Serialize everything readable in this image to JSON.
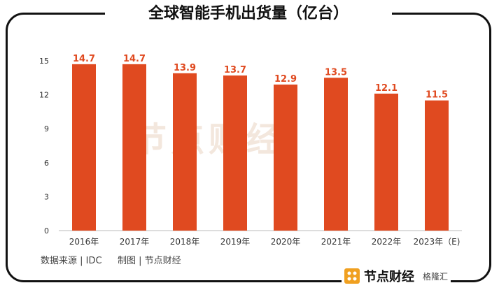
{
  "title": "全球智能手机出货量（亿台）",
  "source": "数据来源 | IDC",
  "credit": "制图 | 节点财经",
  "brand": "节点财经",
  "watermark": "节点财经",
  "badge": "格隆汇",
  "colors": {
    "bar": "#e04a20",
    "label": "#e04a20",
    "axis": "#333333"
  },
  "chart_data": {
    "type": "bar",
    "categories": [
      "2016年",
      "2017年",
      "2018年",
      "2019年",
      "2020年",
      "2021年",
      "2022年",
      "2023年（E)"
    ],
    "values": [
      14.7,
      14.7,
      13.9,
      13.7,
      12.9,
      13.5,
      12.1,
      11.5
    ],
    "data_labels": [
      "14.7",
      "14.7",
      "13.9",
      "13.7",
      "12.9",
      "13.5",
      "12.1",
      "11.5"
    ],
    "title": "全球智能手机出货量（亿台）",
    "xlabel": "",
    "ylabel": "",
    "ylim": [
      0,
      15
    ],
    "yticks": [
      0,
      3,
      6,
      9,
      12,
      15
    ],
    "grid": false,
    "legend": "none"
  }
}
